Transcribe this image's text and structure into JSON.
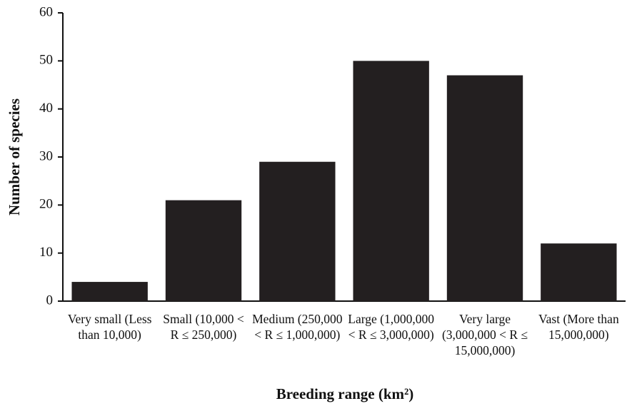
{
  "chart_data": {
    "type": "bar",
    "x_label": "Breeding range (km²)",
    "y_label": "Number of species",
    "categories": [
      "Very small (Less than 10,000)",
      "Small (10,000 < R ≤ 250,000)",
      "Medium (250,000 < R ≤ 1,000,000)",
      "Large (1,000,000 < R ≤ 3,000,000)",
      "Very large (3,000,000 < R ≤ 15,000,000)",
      "Vast (More than 15,000,000)"
    ],
    "values": [
      4,
      21,
      29,
      50,
      47,
      12
    ],
    "color": "#231f20",
    "ylim": [
      0,
      60
    ],
    "yticks": [
      0,
      10,
      20,
      30,
      40,
      50,
      60
    ],
    "grid": false
  }
}
